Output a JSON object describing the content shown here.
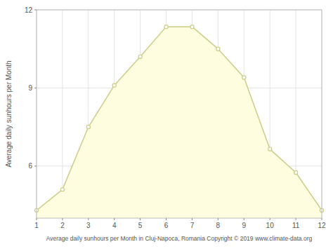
{
  "chart_data": {
    "type": "area",
    "x": [
      1,
      2,
      3,
      4,
      5,
      6,
      7,
      8,
      9,
      10,
      11,
      12
    ],
    "series": [
      {
        "type": "area",
        "color": "#FFFDE0",
        "values": [
          4.3,
          5.1,
          7.5,
          9.1,
          10.2,
          11.35,
          11.35,
          10.5,
          9.4,
          6.65,
          5.75,
          4.3
        ]
      },
      {
        "type": "line",
        "color": "#CCCC88",
        "marker": "circle",
        "values": [
          4.3,
          5.1,
          7.5,
          9.1,
          10.2,
          11.35,
          11.35,
          10.5,
          9.4,
          6.65,
          5.75,
          4.3
        ]
      }
    ],
    "xlabel": "Average daily sunhours per Month in Cluj-Napoca, Romania Copyright © 2019 www.climate-data.org",
    "ylabel": "Average daily sunhours per Month",
    "xlim": [
      1,
      12
    ],
    "xticks": [
      1,
      2,
      3,
      4,
      5,
      6,
      7,
      8,
      9,
      10,
      11,
      12
    ],
    "ylim": [
      4.0,
      12.0
    ],
    "yticks": [
      6,
      9,
      12
    ],
    "grid": true
  }
}
